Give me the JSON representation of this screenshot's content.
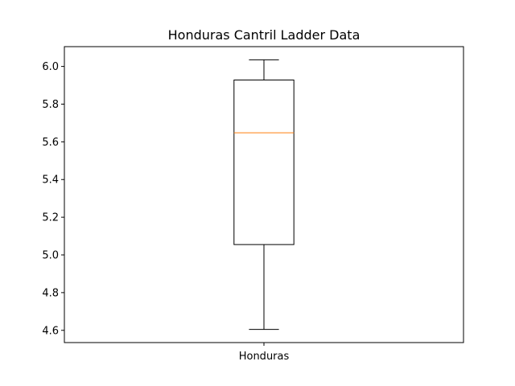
{
  "chart_data": {
    "type": "box",
    "title": "Honduras Cantril Ladder Data",
    "xlabel": "",
    "ylabel": "",
    "categories": [
      "Honduras"
    ],
    "boxes": [
      {
        "category": "Honduras",
        "whisker_low": 4.605,
        "q1": 5.055,
        "median": 5.648,
        "q3": 5.928,
        "whisker_high": 6.035
      }
    ],
    "ylim": [
      4.535,
      6.105
    ],
    "yticks": [
      4.6,
      4.8,
      5.0,
      5.2,
      5.4,
      5.6,
      5.8,
      6.0
    ],
    "ytick_labels": [
      "4.6",
      "4.8",
      "5.0",
      "5.2",
      "5.4",
      "5.6",
      "5.8",
      "6.0"
    ],
    "grid": false,
    "legend": "none",
    "colors": {
      "box_line": "#000000",
      "median_line": "#ff7f0e",
      "axes": "#000000",
      "background": "#ffffff"
    }
  }
}
